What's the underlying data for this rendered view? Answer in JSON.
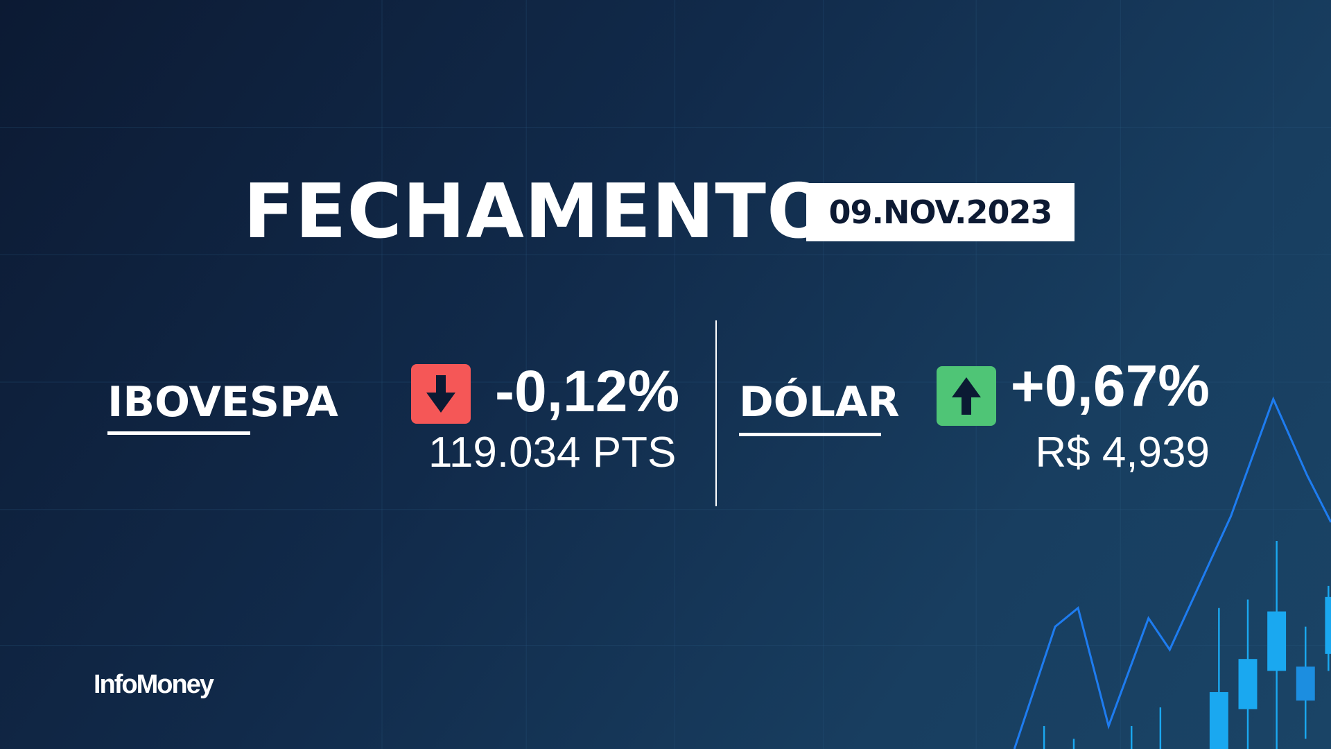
{
  "title": "FECHAMENTO",
  "date": "09.NOV.2023",
  "ibovespa": {
    "label": "IBOVESPA",
    "change": "-0,12%",
    "value": "119.034 PTS",
    "direction": "down",
    "icon": "arrow-down-icon",
    "color": "#f55757"
  },
  "dolar": {
    "label": "DÓLAR",
    "change": "+0,67%",
    "value": "R$ 4,939",
    "direction": "up",
    "icon": "arrow-up-icon",
    "color": "#4fc576"
  },
  "brand": {
    "logo": "InfoMoney"
  },
  "colors": {
    "background": "#112a4a",
    "chart_line": "#1e7cf0",
    "candles": "#1aa8f0"
  }
}
